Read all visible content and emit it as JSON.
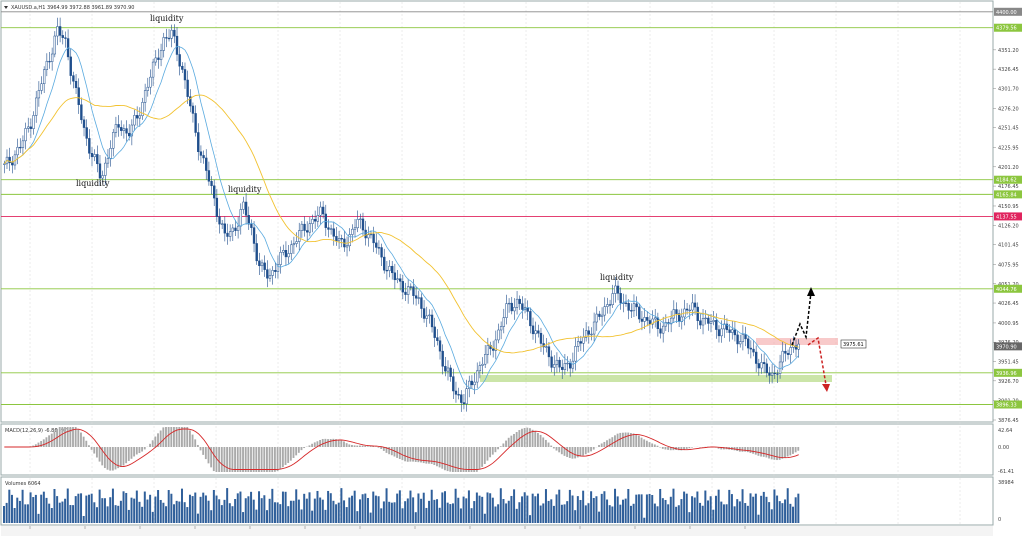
{
  "header": {
    "symbol_line": "XAUUSD.a,H1  3964.99 3972.88 3961.89 3970.90"
  },
  "annotations": {
    "liquidity_top_mid": "liquidity",
    "liquidity_left_low": "liquidity",
    "liquidity_mid": "liquidity",
    "liquidity_right": "liquidity"
  },
  "price_tags": {
    "current": "3975.61",
    "level_4400": "4400.00",
    "level_4379": "4379.56",
    "level_4184": "4184.62",
    "level_4165": "4165.84",
    "level_4137": "4137.55",
    "level_4045": "4044.76",
    "level_3971": "3970.90",
    "level_3936": "3936.96",
    "level_3896": "3896.33"
  },
  "colors": {
    "bull": "#1f4e8c",
    "bear": "#1f4e8c",
    "ma_fast": "#5aaadf",
    "ma_slow": "#f2c230",
    "level_green": "#8cc63f",
    "level_red": "#e0245e",
    "macd_signal": "#d62728",
    "volume": "#2f5f9a",
    "arrow_up": "#000000",
    "arrow_down": "#cc2222"
  },
  "macd": {
    "label": "MACD(12,26,9) -6.86 -9.35",
    "ticks": [
      "42.64",
      "0.00",
      "-61.41"
    ]
  },
  "volumes": {
    "label": "Volumes 6064",
    "ticks": [
      "38984",
      "0"
    ]
  },
  "chart_data": {
    "type": "candlestick",
    "series": [
      {
        "name": "XAUUSD.a,H1",
        "note": "H1 candles, approximate path"
      }
    ],
    "ylim": [
      3876.45,
      4410
    ],
    "y_ticks": [
      "4351.20",
      "4326.45",
      "4301.70",
      "4276.20",
      "4251.45",
      "4225.95",
      "4201.20",
      "4176.45",
      "4150.95",
      "4126.20",
      "4101.45",
      "4075.95",
      "4051.20",
      "4026.45",
      "4000.95",
      "3976.20",
      "3951.45",
      "3926.70",
      "3901.20",
      "3876.45"
    ],
    "key_levels": [
      4400.0,
      4379.56,
      4184.62,
      4165.84,
      4137.55,
      4044.76,
      3970.9,
      3936.96,
      3896.33
    ],
    "price_path": [
      4200,
      4215,
      4230,
      4260,
      4300,
      4340,
      4375,
      4360,
      4300,
      4250,
      4215,
      4185,
      4230,
      4255,
      4245,
      4260,
      4300,
      4330,
      4365,
      4370,
      4335,
      4280,
      4230,
      4190,
      4150,
      4110,
      4120,
      4150,
      4120,
      4070,
      4060,
      4080,
      4090,
      4110,
      4120,
      4135,
      4140,
      4120,
      4100,
      4110,
      4130,
      4120,
      4100,
      4080,
      4060,
      4050,
      4040,
      4030,
      4005,
      3980,
      3940,
      3915,
      3900,
      3925,
      3950,
      3965,
      3990,
      4020,
      4030,
      4015,
      3995,
      3970,
      3955,
      3940,
      3950,
      3970,
      3990,
      4000,
      4020,
      4040,
      4030,
      4020,
      4010,
      4005,
      3995,
      4000,
      4010,
      4015,
      4020,
      4005,
      4000,
      3995,
      3990,
      3985,
      3975,
      3960,
      3940,
      3935,
      3950,
      3970,
      3975
    ]
  }
}
